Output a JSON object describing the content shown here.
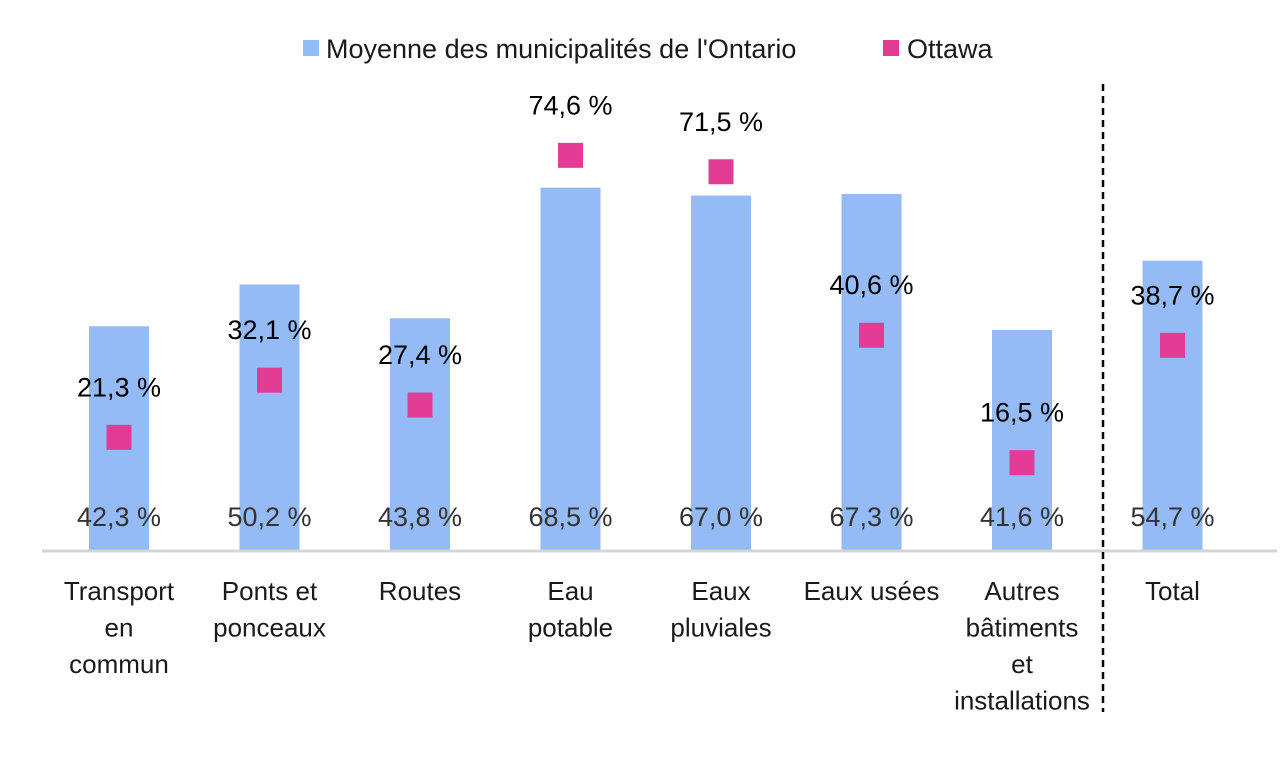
{
  "chart_data": {
    "type": "bar",
    "title": "",
    "xlabel": "",
    "ylabel": "",
    "ylim": [
      0,
      100
    ],
    "grid": false,
    "legend_position": "top-center",
    "categories": [
      [
        "Transport",
        "en",
        "commun"
      ],
      [
        "Ponts et",
        "ponceaux"
      ],
      [
        "Routes"
      ],
      [
        "Eau",
        "potable"
      ],
      [
        "Eaux",
        "pluviales"
      ],
      [
        "Eaux usées"
      ],
      [
        "Autres",
        "bâtiments",
        "et",
        "installations"
      ],
      [
        "Total"
      ]
    ],
    "series": [
      {
        "name": "Moyenne des municipalités de l'Ontario",
        "kind": "bar",
        "color": "#94bbf6",
        "values": [
          42.3,
          50.2,
          43.8,
          68.5,
          67.0,
          67.3,
          41.6,
          54.7
        ],
        "labels": [
          "42,3 %",
          "50,2 %",
          "43,8 %",
          "68,5 %",
          "67,0 %",
          "67,3 %",
          "41,6 %",
          "54,7 %"
        ]
      },
      {
        "name": "Ottawa",
        "kind": "marker",
        "color": "#e23c96",
        "values": [
          21.3,
          32.1,
          27.4,
          74.6,
          71.5,
          40.6,
          16.5,
          38.7
        ],
        "labels": [
          "21,3 %",
          "32,1 %",
          "27,4 %",
          "74,6 %",
          "71,5 %",
          "40,6 %",
          "16,5 %",
          "38,7 %"
        ]
      }
    ],
    "annotations": [
      "dashed vertical separator before Total"
    ]
  }
}
